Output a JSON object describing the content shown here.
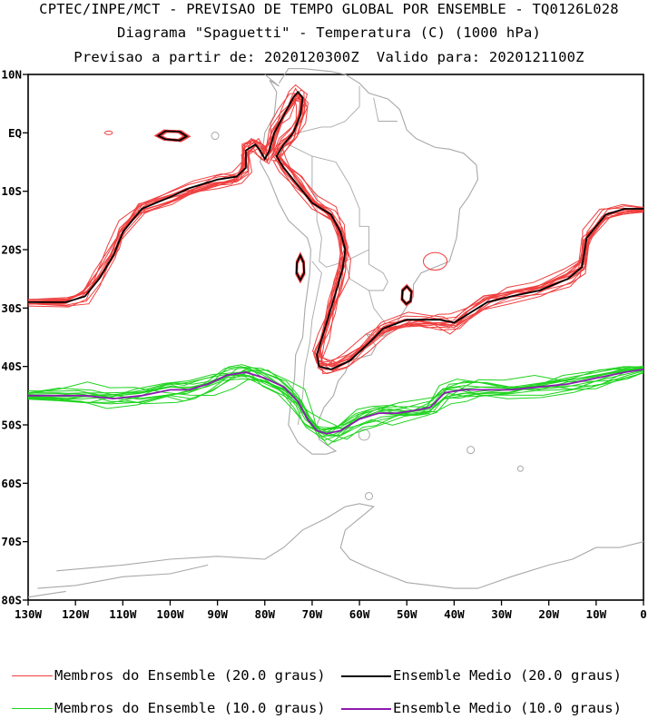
{
  "title": {
    "line1": "CPTEC/INPE/MCT - PREVISAO DE TEMPO GLOBAL POR ENSEMBLE - TQ0126L028",
    "line2": "Diagrama \"Spaguetti\" - Temperatura (C) (1000 hPa)",
    "line3": "Previsao a partir de: 2020120300Z  Valido para: 2020121100Z"
  },
  "chart_data": {
    "type": "line",
    "plot_kind": "spaghetti isotherm map",
    "xlim": [
      -130,
      0
    ],
    "ylim": [
      -80,
      10
    ],
    "x_ticks": [
      {
        "value": -130,
        "label": "130W"
      },
      {
        "value": -120,
        "label": "120W"
      },
      {
        "value": -110,
        "label": "110W"
      },
      {
        "value": -100,
        "label": "100W"
      },
      {
        "value": -90,
        "label": "90W"
      },
      {
        "value": -80,
        "label": "80W"
      },
      {
        "value": -70,
        "label": "70W"
      },
      {
        "value": -60,
        "label": "60W"
      },
      {
        "value": -50,
        "label": "50W"
      },
      {
        "value": -40,
        "label": "40W"
      },
      {
        "value": -30,
        "label": "30W"
      },
      {
        "value": -20,
        "label": "20W"
      },
      {
        "value": -10,
        "label": "10W"
      },
      {
        "value": 0,
        "label": "0"
      }
    ],
    "y_ticks": [
      {
        "value": 10,
        "label": "10N"
      },
      {
        "value": 0,
        "label": "EQ"
      },
      {
        "value": -10,
        "label": "10S"
      },
      {
        "value": -20,
        "label": "20S"
      },
      {
        "value": -30,
        "label": "30S"
      },
      {
        "value": -40,
        "label": "40S"
      },
      {
        "value": -50,
        "label": "50S"
      },
      {
        "value": -60,
        "label": "60S"
      },
      {
        "value": -70,
        "label": "70S"
      },
      {
        "value": -80,
        "label": "80S"
      }
    ],
    "colors": {
      "members_20": "#ef3f3f",
      "mean_20": "#000000",
      "members_10": "#1fd31f",
      "mean_10": "#8b1ab0",
      "coast": "#a8a8a8"
    },
    "series": [
      {
        "name": "Ensemble Medio (20.0 graus)",
        "color": "#000000",
        "points": [
          [
            -130,
            -29
          ],
          [
            -122,
            -29
          ],
          [
            -118,
            -28
          ],
          [
            -115,
            -25
          ],
          [
            -112,
            -21
          ],
          [
            -110,
            -17
          ],
          [
            -106,
            -13
          ],
          [
            -100,
            -11
          ],
          [
            -96,
            -9.5
          ],
          [
            -90,
            -8
          ],
          [
            -86,
            -7.5
          ],
          [
            -84,
            -6
          ],
          [
            -84,
            -3
          ],
          [
            -82,
            -2
          ],
          [
            -81,
            -3
          ],
          [
            -80,
            -4.5
          ],
          [
            -79,
            -3
          ],
          [
            -78,
            0
          ],
          [
            -76,
            3
          ],
          [
            -74,
            6
          ],
          [
            -73,
            7
          ],
          [
            -72,
            6
          ],
          [
            -72.5,
            3
          ],
          [
            -74,
            0
          ],
          [
            -76,
            -2
          ],
          [
            -77.5,
            -4
          ],
          [
            -76,
            -6
          ],
          [
            -73,
            -9
          ],
          [
            -70,
            -12
          ],
          [
            -66,
            -14
          ],
          [
            -64,
            -17
          ],
          [
            -63,
            -20
          ],
          [
            -63.5,
            -23
          ],
          [
            -64.5,
            -26
          ],
          [
            -66,
            -30
          ],
          [
            -67.5,
            -34
          ],
          [
            -69,
            -38
          ],
          [
            -68.5,
            -40
          ],
          [
            -66,
            -40.5
          ],
          [
            -62,
            -39
          ],
          [
            -58,
            -36
          ],
          [
            -55,
            -33.5
          ],
          [
            -50,
            -32
          ],
          [
            -46,
            -32
          ],
          [
            -43,
            -32
          ],
          [
            -40,
            -32.5
          ],
          [
            -37,
            -31
          ],
          [
            -33,
            -29
          ],
          [
            -28,
            -28
          ],
          [
            -22,
            -27
          ],
          [
            -16,
            -25
          ],
          [
            -13,
            -23
          ],
          [
            -12,
            -18
          ],
          [
            -8,
            -14
          ],
          [
            -4,
            -13
          ],
          [
            0,
            -13
          ]
        ],
        "closed_contours": [
          [
            [
              -101,
              0.3
            ],
            [
              -98,
              0.2
            ],
            [
              -96.5,
              -0.6
            ],
            [
              -98,
              -1.3
            ],
            [
              -101,
              -1.1
            ],
            [
              -102.5,
              -0.5
            ]
          ],
          [
            [
              -72.5,
              -21
            ],
            [
              -71.8,
              -22.2
            ],
            [
              -71.7,
              -24
            ],
            [
              -72.5,
              -25.2
            ],
            [
              -73.3,
              -24
            ],
            [
              -73.2,
              -22.2
            ]
          ],
          [
            [
              -50,
              -26.3
            ],
            [
              -49,
              -27.2
            ],
            [
              -49.2,
              -28.8
            ],
            [
              -50.1,
              -29.3
            ],
            [
              -51,
              -28.5
            ],
            [
              -50.9,
              -27
            ]
          ]
        ]
      },
      {
        "name": "Ensemble Medio (10.0 graus)",
        "color": "#8b1ab0",
        "points": [
          [
            -130,
            -45
          ],
          [
            -124,
            -45
          ],
          [
            -118,
            -45
          ],
          [
            -112,
            -45.5
          ],
          [
            -106,
            -45
          ],
          [
            -100,
            -44
          ],
          [
            -96,
            -44
          ],
          [
            -92,
            -43
          ],
          [
            -88,
            -41.5
          ],
          [
            -84,
            -41
          ],
          [
            -80,
            -42
          ],
          [
            -76,
            -43.5
          ],
          [
            -73,
            -46
          ],
          [
            -71,
            -49
          ],
          [
            -69,
            -51
          ],
          [
            -67,
            -51.5
          ],
          [
            -64,
            -51
          ],
          [
            -60,
            -49
          ],
          [
            -56,
            -48
          ],
          [
            -52,
            -48
          ],
          [
            -48,
            -47.5
          ],
          [
            -45,
            -47
          ],
          [
            -42,
            -44.5
          ],
          [
            -38,
            -44
          ],
          [
            -34,
            -44
          ],
          [
            -28,
            -44
          ],
          [
            -22,
            -43.5
          ],
          [
            -16,
            -43
          ],
          [
            -10,
            -42
          ],
          [
            -4,
            -41
          ],
          [
            0,
            -40.5
          ]
        ]
      }
    ],
    "member_groups": [
      {
        "name": "Membros do Ensemble (20.0 graus)",
        "color": "#ef3f3f",
        "count": 14,
        "follows": "Ensemble Medio (20.0 graus)"
      },
      {
        "name": "Membros do Ensemble (10.0 graus)",
        "color": "#1fd31f",
        "count": 14,
        "follows": "Ensemble Medio (10.0 graus)"
      }
    ],
    "legend_placement": "bottom",
    "grid": false
  },
  "legend": [
    {
      "label": "Membros do Ensemble (20.0 graus)",
      "color": "#ef3f3f",
      "stroke": 1
    },
    {
      "label": "Ensemble Medio (20.0 graus)",
      "color": "#000000",
      "stroke": 2
    },
    {
      "label": "Membros do Ensemble (10.0 graus)",
      "color": "#1fd31f",
      "stroke": 1
    },
    {
      "label": "Ensemble Medio (10.0 graus)",
      "color": "#8b1ab0",
      "stroke": 2
    }
  ]
}
